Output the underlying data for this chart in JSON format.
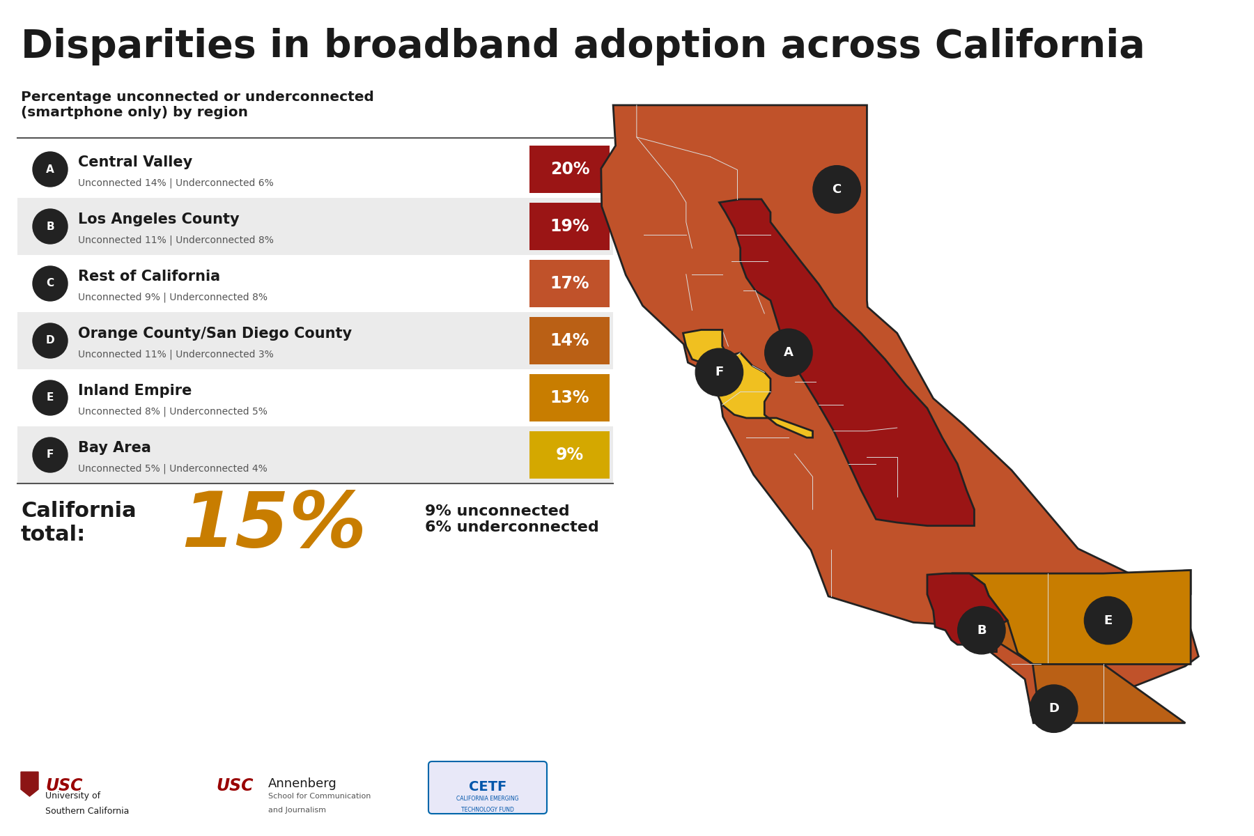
{
  "title": "Disparities in broadband adoption across California",
  "subtitle": "Percentage unconnected or underconnected\n(smartphone only) by region",
  "regions": [
    {
      "label": "A",
      "name": "Central Valley",
      "detail": "Unconnected 14% | Underconnected 6%",
      "pct": "20%",
      "color": "#9B1515",
      "row_bg": "#FFFFFF"
    },
    {
      "label": "B",
      "name": "Los Angeles County",
      "detail": "Unconnected 11% | Underconnected 8%",
      "pct": "19%",
      "color": "#9B1515",
      "row_bg": "#EBEBEB"
    },
    {
      "label": "C",
      "name": "Rest of California",
      "detail": "Unconnected 9% | Underconnected 8%",
      "pct": "17%",
      "color": "#C0522A",
      "row_bg": "#FFFFFF"
    },
    {
      "label": "D",
      "name": "Orange County/San Diego County",
      "detail": "Unconnected 11% | Underconnected 3%",
      "pct": "14%",
      "color": "#BA6015",
      "row_bg": "#EBEBEB"
    },
    {
      "label": "E",
      "name": "Inland Empire",
      "detail": "Unconnected 8% | Underconnected 5%",
      "pct": "13%",
      "color": "#C87D00",
      "row_bg": "#FFFFFF"
    },
    {
      "label": "F",
      "name": "Bay Area",
      "detail": "Unconnected 5% | Underconnected 4%",
      "pct": "9%",
      "color": "#D4A800",
      "row_bg": "#EBEBEB"
    }
  ],
  "total_pct": "15%",
  "total_label": "California\ntotal:",
  "total_detail": "9% unconnected\n6% underconnected",
  "total_color": "#C87D00",
  "bg_color": "#FFFFFF",
  "map_colors": {
    "A": "#9B1515",
    "B": "#9B1515",
    "C": "#C0522A",
    "D": "#BA6015",
    "E": "#C87D00",
    "F": "#F0C020"
  },
  "region_border_color": "#222222",
  "county_border_color": "#DDDDDD"
}
